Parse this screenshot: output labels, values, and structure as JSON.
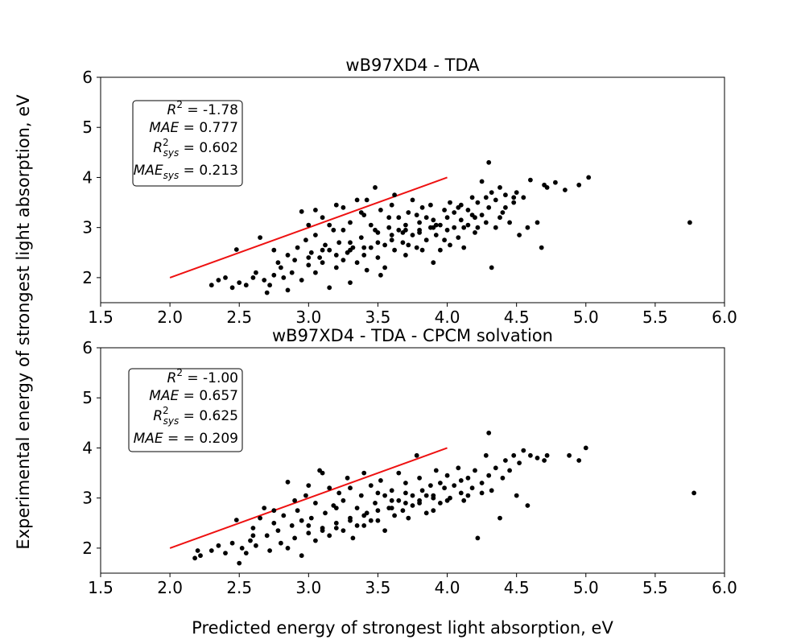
{
  "figure": {
    "xlabel": "Predicted energy of strongest light absorption, eV",
    "ylabel": "Experimental energy of strongest light absorption, eV"
  },
  "colors": {
    "points": "#000000",
    "ideal_line": "#ee1111"
  },
  "chart_data": [
    {
      "type": "scatter",
      "title": "wB97XD4 - TDA",
      "xlim": [
        1.5,
        6.0
      ],
      "ylim": [
        1.5,
        6.0
      ],
      "xticks": [
        "1.5",
        "2.0",
        "2.5",
        "3.0",
        "3.5",
        "4.0",
        "4.5",
        "5.0",
        "5.5",
        "6.0"
      ],
      "yticks": [
        "2",
        "3",
        "4",
        "5",
        "6"
      ],
      "grid": false,
      "stats_box_position": "upper-left",
      "stats": {
        "r2": "R² = -1.78",
        "mae": "MAE =  0.777",
        "r2_sys": "R²sys = 0.602",
        "mae_sys": "MAEsys = 0.213"
      },
      "reference_line": {
        "x": [
          2.0,
          4.0
        ],
        "y": [
          2.0,
          4.0
        ]
      },
      "points": [
        [
          2.3,
          1.85
        ],
        [
          2.35,
          1.95
        ],
        [
          2.4,
          2.0
        ],
        [
          2.45,
          1.8
        ],
        [
          2.48,
          2.56
        ],
        [
          2.5,
          1.9
        ],
        [
          2.6,
          2.0
        ],
        [
          2.62,
          2.1
        ],
        [
          2.65,
          2.8
        ],
        [
          2.68,
          1.95
        ],
        [
          2.7,
          1.7
        ],
        [
          2.72,
          1.85
        ],
        [
          2.75,
          2.05
        ],
        [
          2.78,
          2.3
        ],
        [
          2.8,
          2.2
        ],
        [
          2.82,
          2.0
        ],
        [
          2.85,
          2.45
        ],
        [
          2.88,
          2.1
        ],
        [
          2.9,
          2.35
        ],
        [
          2.92,
          2.6
        ],
        [
          2.95,
          1.95
        ],
        [
          2.95,
          3.32
        ],
        [
          2.98,
          2.75
        ],
        [
          3.0,
          2.25
        ],
        [
          3.0,
          3.05
        ],
        [
          3.02,
          2.5
        ],
        [
          3.05,
          2.1
        ],
        [
          3.05,
          2.85
        ],
        [
          3.08,
          2.4
        ],
        [
          3.1,
          3.2
        ],
        [
          3.1,
          2.3
        ],
        [
          3.12,
          2.65
        ],
        [
          3.15,
          1.8
        ],
        [
          3.15,
          2.55
        ],
        [
          3.18,
          2.95
        ],
        [
          3.2,
          2.2
        ],
        [
          3.2,
          3.45
        ],
        [
          3.22,
          2.7
        ],
        [
          3.25,
          2.35
        ],
        [
          3.25,
          2.95
        ],
        [
          3.28,
          2.5
        ],
        [
          3.3,
          3.1
        ],
        [
          3.3,
          1.9
        ],
        [
          3.32,
          2.6
        ],
        [
          3.35,
          2.3
        ],
        [
          3.35,
          3.55
        ],
        [
          3.38,
          2.8
        ],
        [
          3.4,
          2.45
        ],
        [
          3.4,
          3.25
        ],
        [
          3.42,
          2.15
        ],
        [
          3.45,
          2.6
        ],
        [
          3.45,
          3.05
        ],
        [
          3.48,
          3.8
        ],
        [
          3.5,
          2.4
        ],
        [
          3.5,
          2.9
        ],
        [
          3.52,
          3.35
        ],
        [
          3.55,
          2.65
        ],
        [
          3.55,
          2.2
        ],
        [
          3.58,
          3.0
        ],
        [
          3.6,
          2.75
        ],
        [
          3.6,
          3.45
        ],
        [
          3.62,
          2.55
        ],
        [
          3.65,
          2.95
        ],
        [
          3.65,
          3.2
        ],
        [
          3.68,
          2.7
        ],
        [
          3.7,
          3.05
        ],
        [
          3.7,
          2.45
        ],
        [
          3.72,
          3.3
        ],
        [
          3.75,
          2.85
        ],
        [
          3.75,
          3.55
        ],
        [
          3.78,
          2.6
        ],
        [
          3.8,
          3.1
        ],
        [
          3.8,
          2.95
        ],
        [
          3.82,
          3.4
        ],
        [
          3.85,
          2.75
        ],
        [
          3.85,
          3.2
        ],
        [
          3.88,
          3.0
        ],
        [
          3.9,
          2.3
        ],
        [
          3.9,
          3.15
        ],
        [
          3.92,
          2.85
        ],
        [
          3.95,
          3.05
        ],
        [
          3.95,
          2.55
        ],
        [
          3.98,
          3.35
        ],
        [
          4.0,
          2.95
        ],
        [
          4.0,
          3.2
        ],
        [
          4.02,
          3.5
        ],
        [
          4.05,
          3.0
        ],
        [
          4.05,
          3.3
        ],
        [
          4.08,
          2.8
        ],
        [
          4.1,
          3.15
        ],
        [
          4.1,
          3.45
        ],
        [
          4.12,
          2.6
        ],
        [
          4.15,
          3.35
        ],
        [
          4.15,
          3.05
        ],
        [
          4.18,
          3.6
        ],
        [
          4.2,
          3.2
        ],
        [
          4.2,
          2.9
        ],
        [
          4.22,
          3.5
        ],
        [
          4.25,
          3.25
        ],
        [
          4.25,
          3.92
        ],
        [
          4.28,
          3.1
        ],
        [
          4.3,
          3.4
        ],
        [
          4.3,
          4.3
        ],
        [
          4.32,
          2.2
        ],
        [
          4.35,
          3.55
        ],
        [
          4.35,
          3.0
        ],
        [
          4.38,
          3.8
        ],
        [
          4.4,
          3.3
        ],
        [
          4.42,
          3.65
        ],
        [
          4.45,
          3.1
        ],
        [
          4.48,
          3.5
        ],
        [
          4.5,
          3.7
        ],
        [
          4.52,
          2.85
        ],
        [
          4.55,
          3.6
        ],
        [
          4.58,
          3.0
        ],
        [
          4.6,
          3.95
        ],
        [
          4.65,
          3.1
        ],
        [
          4.68,
          2.6
        ],
        [
          4.7,
          3.85
        ],
        [
          4.72,
          3.8
        ],
        [
          4.78,
          3.9
        ],
        [
          4.85,
          3.75
        ],
        [
          4.95,
          3.85
        ],
        [
          5.02,
          4.0
        ],
        [
          5.75,
          3.1
        ],
        [
          2.55,
          1.85
        ],
        [
          2.75,
          2.55
        ],
        [
          2.85,
          1.75
        ],
        [
          3.05,
          3.35
        ],
        [
          3.15,
          3.05
        ],
        [
          3.25,
          3.4
        ],
        [
          3.3,
          2.7
        ],
        [
          3.38,
          3.3
        ],
        [
          3.42,
          3.55
        ],
        [
          3.48,
          2.95
        ],
        [
          3.52,
          2.05
        ],
        [
          3.58,
          3.2
        ],
        [
          3.62,
          3.65
        ],
        [
          3.68,
          2.9
        ],
        [
          3.72,
          2.65
        ],
        [
          3.78,
          3.25
        ],
        [
          3.82,
          2.55
        ],
        [
          3.88,
          3.45
        ],
        [
          3.92,
          3.05
        ],
        [
          3.98,
          2.75
        ],
        [
          4.02,
          2.65
        ],
        [
          4.08,
          3.4
        ],
        [
          4.12,
          3.0
        ],
        [
          4.18,
          3.25
        ],
        [
          4.22,
          3.0
        ],
        [
          4.28,
          3.6
        ],
        [
          4.32,
          3.7
        ],
        [
          4.38,
          3.2
        ],
        [
          4.42,
          3.4
        ],
        [
          4.48,
          3.6
        ],
        [
          3.0,
          2.4
        ],
        [
          3.1,
          2.55
        ],
        [
          3.2,
          2.45
        ],
        [
          3.3,
          2.55
        ],
        [
          3.4,
          2.6
        ],
        [
          3.5,
          2.7
        ],
        [
          3.6,
          2.85
        ],
        [
          3.7,
          2.95
        ],
        [
          3.8,
          2.9
        ],
        [
          3.9,
          3.0
        ]
      ]
    },
    {
      "type": "scatter",
      "title": "wB97XD4 - TDA - CPCM solvation",
      "xlim": [
        1.5,
        6.0
      ],
      "ylim": [
        1.5,
        6.0
      ],
      "xticks": [
        "1.5",
        "2.0",
        "2.5",
        "3.0",
        "3.5",
        "4.0",
        "4.5",
        "5.0",
        "5.5",
        "6.0"
      ],
      "yticks": [
        "2",
        "3",
        "4",
        "5",
        "6"
      ],
      "grid": false,
      "stats_box_position": "upper-left",
      "stats": {
        "r2": "R² = -1.00",
        "mae": "MAE =  0.657",
        "r2_sys": "R²sys = 0.625",
        "mae_sys": "MAE =  = 0.209"
      },
      "reference_line": {
        "x": [
          2.0,
          4.0
        ],
        "y": [
          2.0,
          4.0
        ]
      },
      "points": [
        [
          2.18,
          1.8
        ],
        [
          2.2,
          1.95
        ],
        [
          2.22,
          1.85
        ],
        [
          2.3,
          1.95
        ],
        [
          2.35,
          2.05
        ],
        [
          2.4,
          1.9
        ],
        [
          2.45,
          2.1
        ],
        [
          2.48,
          2.56
        ],
        [
          2.5,
          1.7
        ],
        [
          2.52,
          2.0
        ],
        [
          2.55,
          1.9
        ],
        [
          2.58,
          2.15
        ],
        [
          2.6,
          2.4
        ],
        [
          2.62,
          2.05
        ],
        [
          2.65,
          2.6
        ],
        [
          2.68,
          2.8
        ],
        [
          2.7,
          2.25
        ],
        [
          2.72,
          1.95
        ],
        [
          2.75,
          2.5
        ],
        [
          2.78,
          2.35
        ],
        [
          2.8,
          2.1
        ],
        [
          2.82,
          2.65
        ],
        [
          2.85,
          2.0
        ],
        [
          2.85,
          3.32
        ],
        [
          2.88,
          2.45
        ],
        [
          2.9,
          2.2
        ],
        [
          2.92,
          2.75
        ],
        [
          2.95,
          1.85
        ],
        [
          2.95,
          2.55
        ],
        [
          2.98,
          3.05
        ],
        [
          3.0,
          2.3
        ],
        [
          3.02,
          2.6
        ],
        [
          3.05,
          2.15
        ],
        [
          3.05,
          2.9
        ],
        [
          3.08,
          3.55
        ],
        [
          3.1,
          2.4
        ],
        [
          3.12,
          2.7
        ],
        [
          3.15,
          3.2
        ],
        [
          3.15,
          2.25
        ],
        [
          3.18,
          2.85
        ],
        [
          3.2,
          2.5
        ],
        [
          3.22,
          3.1
        ],
        [
          3.25,
          2.35
        ],
        [
          3.25,
          2.95
        ],
        [
          3.28,
          3.4
        ],
        [
          3.3,
          2.6
        ],
        [
          3.32,
          2.2
        ],
        [
          3.35,
          2.8
        ],
        [
          3.38,
          3.05
        ],
        [
          3.4,
          2.45
        ],
        [
          3.4,
          3.5
        ],
        [
          3.42,
          2.7
        ],
        [
          3.45,
          3.25
        ],
        [
          3.48,
          2.9
        ],
        [
          3.5,
          2.55
        ],
        [
          3.52,
          3.35
        ],
        [
          3.55,
          3.05
        ],
        [
          3.55,
          2.35
        ],
        [
          3.58,
          2.8
        ],
        [
          3.6,
          3.15
        ],
        [
          3.62,
          2.65
        ],
        [
          3.65,
          3.5
        ],
        [
          3.65,
          2.95
        ],
        [
          3.68,
          2.75
        ],
        [
          3.7,
          3.3
        ],
        [
          3.72,
          2.6
        ],
        [
          3.75,
          3.05
        ],
        [
          3.78,
          3.85
        ],
        [
          3.8,
          2.9
        ],
        [
          3.8,
          3.4
        ],
        [
          3.82,
          3.15
        ],
        [
          3.85,
          2.7
        ],
        [
          3.88,
          3.25
        ],
        [
          3.9,
          3.0
        ],
        [
          3.92,
          3.55
        ],
        [
          3.95,
          2.9
        ],
        [
          3.98,
          3.2
        ],
        [
          4.0,
          3.45
        ],
        [
          4.02,
          3.0
        ],
        [
          4.05,
          3.25
        ],
        [
          4.08,
          3.6
        ],
        [
          4.1,
          3.1
        ],
        [
          4.12,
          2.95
        ],
        [
          4.15,
          3.4
        ],
        [
          4.18,
          3.2
        ],
        [
          4.2,
          3.55
        ],
        [
          4.22,
          2.2
        ],
        [
          4.25,
          3.3
        ],
        [
          4.28,
          3.85
        ],
        [
          4.3,
          3.45
        ],
        [
          4.3,
          4.3
        ],
        [
          4.32,
          3.15
        ],
        [
          4.35,
          3.6
        ],
        [
          4.38,
          2.6
        ],
        [
          4.4,
          3.4
        ],
        [
          4.42,
          3.75
        ],
        [
          4.45,
          3.55
        ],
        [
          4.48,
          3.85
        ],
        [
          4.5,
          3.05
        ],
        [
          4.52,
          3.7
        ],
        [
          4.55,
          3.95
        ],
        [
          4.58,
          2.85
        ],
        [
          4.6,
          3.85
        ],
        [
          4.65,
          3.8
        ],
        [
          4.7,
          3.75
        ],
        [
          4.72,
          3.85
        ],
        [
          4.88,
          3.85
        ],
        [
          4.95,
          3.75
        ],
        [
          5.0,
          4.0
        ],
        [
          5.78,
          3.1
        ],
        [
          2.6,
          2.25
        ],
        [
          2.75,
          2.75
        ],
        [
          2.9,
          2.95
        ],
        [
          3.0,
          3.25
        ],
        [
          3.1,
          3.5
        ],
        [
          3.2,
          2.8
        ],
        [
          3.3,
          3.2
        ],
        [
          3.35,
          2.45
        ],
        [
          3.45,
          2.55
        ],
        [
          3.5,
          3.1
        ],
        [
          3.6,
          2.95
        ],
        [
          3.7,
          3.1
        ],
        [
          3.75,
          2.85
        ],
        [
          3.85,
          3.05
        ],
        [
          3.9,
          2.75
        ],
        [
          3.95,
          3.3
        ],
        [
          4.0,
          2.95
        ],
        [
          4.1,
          3.35
        ],
        [
          4.15,
          3.05
        ],
        [
          4.25,
          3.1
        ],
        [
          3.0,
          2.45
        ],
        [
          3.1,
          2.35
        ],
        [
          3.2,
          2.4
        ],
        [
          3.3,
          2.55
        ],
        [
          3.4,
          2.65
        ],
        [
          3.5,
          2.75
        ],
        [
          3.6,
          2.8
        ],
        [
          3.7,
          2.9
        ],
        [
          3.8,
          2.95
        ],
        [
          3.9,
          3.05
        ]
      ]
    }
  ]
}
